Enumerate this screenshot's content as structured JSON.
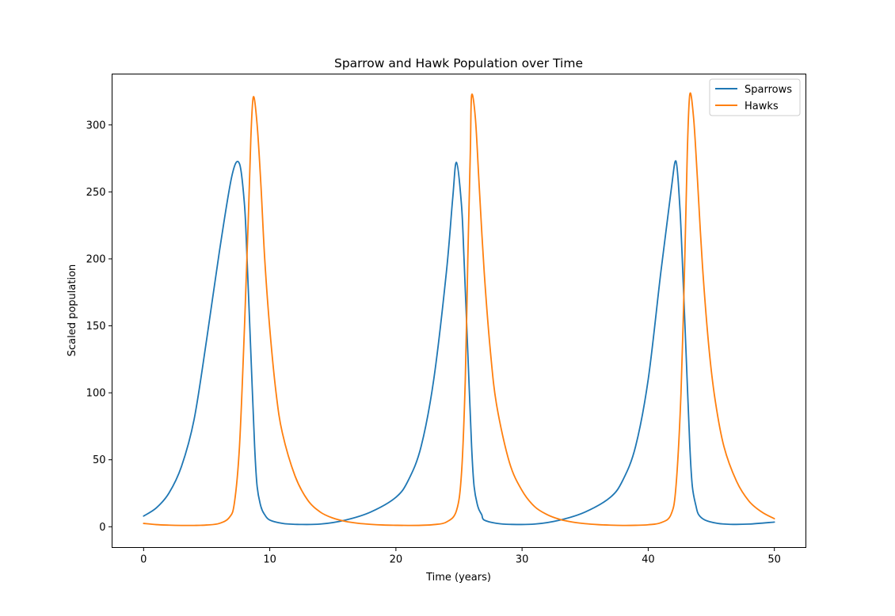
{
  "chart_data": {
    "type": "line",
    "title": "Sparrow and Hawk Population over Time",
    "xlabel": "Time (years)",
    "ylabel": "Scaled population",
    "xlim": [
      -2.5,
      52.5
    ],
    "ylim": [
      -15.5,
      338
    ],
    "xticks": [
      0,
      10,
      20,
      30,
      40,
      50
    ],
    "yticks": [
      0,
      50,
      100,
      150,
      200,
      250,
      300
    ],
    "grid": false,
    "legend_position": "top-right",
    "series": [
      {
        "name": "Sparrows",
        "color": "#1f77b4",
        "points": [
          [
            0,
            8
          ],
          [
            1,
            14
          ],
          [
            2,
            25
          ],
          [
            3,
            45
          ],
          [
            4,
            80
          ],
          [
            5,
            140
          ],
          [
            6,
            205
          ],
          [
            7,
            262
          ],
          [
            7.6,
            271
          ],
          [
            8,
            240
          ],
          [
            8.2,
            200
          ],
          [
            8.5,
            130
          ],
          [
            8.8,
            60
          ],
          [
            9,
            30
          ],
          [
            9.3,
            15
          ],
          [
            9.6,
            9
          ],
          [
            10,
            5
          ],
          [
            11,
            2.5
          ],
          [
            12,
            1.8
          ],
          [
            14,
            2
          ],
          [
            16,
            5
          ],
          [
            18,
            11
          ],
          [
            20,
            22
          ],
          [
            21,
            35
          ],
          [
            22,
            60
          ],
          [
            23,
            110
          ],
          [
            24,
            190
          ],
          [
            24.5,
            245
          ],
          [
            24.8,
            272
          ],
          [
            25.2,
            240
          ],
          [
            25.4,
            200
          ],
          [
            25.7,
            130
          ],
          [
            26,
            60
          ],
          [
            26.2,
            30
          ],
          [
            26.5,
            15
          ],
          [
            26.8,
            9
          ],
          [
            27,
            5
          ],
          [
            28,
            2.5
          ],
          [
            29,
            1.8
          ],
          [
            31,
            2
          ],
          [
            33,
            5
          ],
          [
            35,
            11
          ],
          [
            37,
            22
          ],
          [
            38,
            35
          ],
          [
            39,
            60
          ],
          [
            40,
            110
          ],
          [
            41,
            190
          ],
          [
            41.8,
            250
          ],
          [
            42.2,
            273
          ],
          [
            42.5,
            240
          ],
          [
            42.7,
            200
          ],
          [
            43,
            130
          ],
          [
            43.3,
            60
          ],
          [
            43.5,
            30
          ],
          [
            43.8,
            15
          ],
          [
            44,
            9
          ],
          [
            44.5,
            5
          ],
          [
            45.5,
            2.5
          ],
          [
            46.5,
            1.8
          ],
          [
            48,
            2
          ],
          [
            50,
            3.5
          ]
        ]
      },
      {
        "name": "Hawks",
        "color": "#ff7f0e",
        "points": [
          [
            0,
            2.5
          ],
          [
            1,
            1.6
          ],
          [
            2,
            1.2
          ],
          [
            3,
            1
          ],
          [
            4,
            1
          ],
          [
            5,
            1.3
          ],
          [
            6,
            2.5
          ],
          [
            6.8,
            7
          ],
          [
            7.2,
            18
          ],
          [
            7.6,
            60
          ],
          [
            8,
            150
          ],
          [
            8.3,
            230
          ],
          [
            8.5,
            290
          ],
          [
            8.7,
            321
          ],
          [
            9,
            300
          ],
          [
            9.3,
            255
          ],
          [
            9.6,
            200
          ],
          [
            10,
            148
          ],
          [
            10.5,
            100
          ],
          [
            11,
            70
          ],
          [
            12,
            38
          ],
          [
            13,
            20
          ],
          [
            14,
            11
          ],
          [
            15,
            6.5
          ],
          [
            16,
            4
          ],
          [
            17,
            2.6
          ],
          [
            18,
            1.8
          ],
          [
            19,
            1.3
          ],
          [
            20,
            1.1
          ],
          [
            21,
            1
          ],
          [
            22,
            1.1
          ],
          [
            23,
            1.6
          ],
          [
            24,
            3.5
          ],
          [
            24.8,
            12
          ],
          [
            25.2,
            40
          ],
          [
            25.5,
            110
          ],
          [
            25.7,
            200
          ],
          [
            25.9,
            280
          ],
          [
            26,
            322
          ],
          [
            26.3,
            305
          ],
          [
            26.6,
            255
          ],
          [
            27,
            190
          ],
          [
            27.5,
            130
          ],
          [
            28,
            90
          ],
          [
            29,
            48
          ],
          [
            30,
            27
          ],
          [
            31,
            15
          ],
          [
            32,
            9
          ],
          [
            33,
            5.5
          ],
          [
            34,
            3.5
          ],
          [
            35,
            2.3
          ],
          [
            36,
            1.6
          ],
          [
            37,
            1.2
          ],
          [
            38,
            1
          ],
          [
            39,
            1.1
          ],
          [
            40,
            1.5
          ],
          [
            41,
            3
          ],
          [
            41.8,
            9
          ],
          [
            42.2,
            30
          ],
          [
            42.6,
            100
          ],
          [
            42.9,
            200
          ],
          [
            43.1,
            280
          ],
          [
            43.3,
            323
          ],
          [
            43.6,
            305
          ],
          [
            43.9,
            260
          ],
          [
            44.3,
            195
          ],
          [
            44.8,
            135
          ],
          [
            45.3,
            95
          ],
          [
            46,
            60
          ],
          [
            47,
            34
          ],
          [
            48,
            19
          ],
          [
            49,
            11
          ],
          [
            50,
            6
          ]
        ]
      }
    ]
  }
}
